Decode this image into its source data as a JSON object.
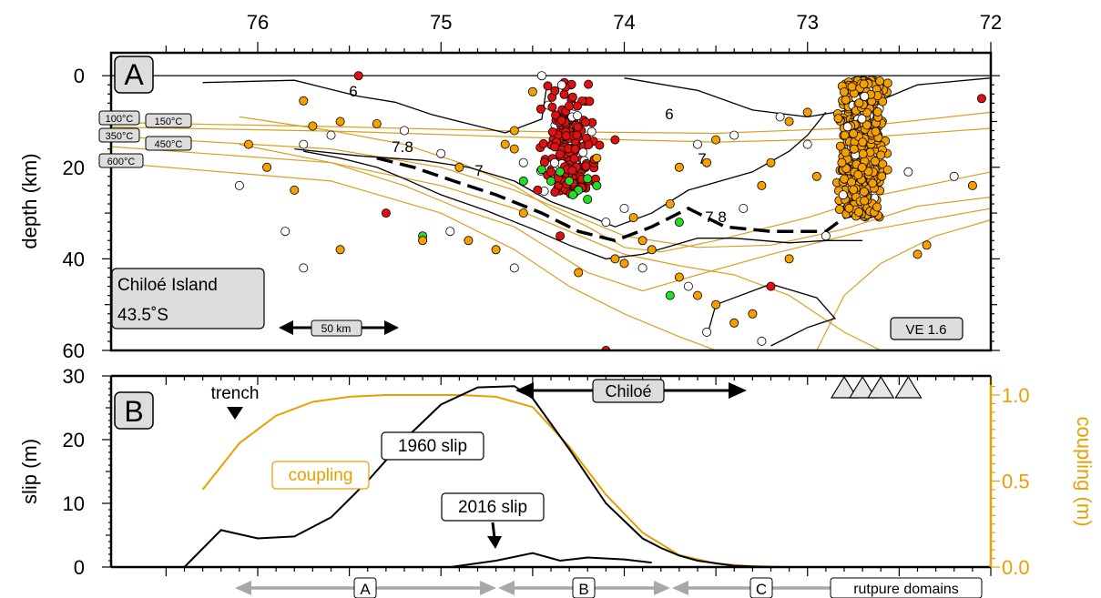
{
  "chart_data": [
    {
      "type": "scatter",
      "panel_label": "A",
      "x_ticks": [
        "76",
        "75",
        "74",
        "73",
        "72"
      ],
      "x_tick_values": [
        76,
        75,
        74,
        73,
        72
      ],
      "xlim": [
        76.8,
        72
      ],
      "ylabel": "depth (km)",
      "y_ticks": [
        "0",
        "20",
        "40",
        "60"
      ],
      "y_tick_values": [
        0,
        20,
        40,
        60
      ],
      "ylim": [
        -5,
        60
      ],
      "location_name": "Chiloé Island",
      "location_lat": "43.5˚S",
      "scale_label": "50 km",
      "ve_label": "VE 1.6",
      "isotherm_labels": [
        "100°C",
        "150°C",
        "350°C",
        "450°C",
        "600°C"
      ],
      "contour_labels": [
        "6",
        "6",
        "7",
        "7",
        "7.8",
        "7.8"
      ],
      "colors": {
        "red": "#dd1111",
        "green": "#22dd22",
        "orange": "#f5a000",
        "white": "#ffffff",
        "isotherm": "#d9a020"
      },
      "slab_top": [
        [
          76.1,
          9
        ],
        [
          75.6,
          12
        ],
        [
          75.2,
          15
        ],
        [
          74.9,
          19
        ],
        [
          74.6,
          24
        ],
        [
          74.4,
          29
        ],
        [
          74.2,
          33
        ],
        [
          74.0,
          37.5
        ],
        [
          73.8,
          38.5
        ],
        [
          73.5,
          36
        ],
        [
          73.0,
          31
        ],
        [
          72.6,
          26
        ],
        [
          72.0,
          21
        ]
      ],
      "slab_bottom": [
        [
          76.1,
          15
        ],
        [
          75.6,
          19
        ],
        [
          75.2,
          24
        ],
        [
          74.9,
          29
        ],
        [
          74.6,
          33
        ],
        [
          74.4,
          38
        ],
        [
          74.2,
          43
        ],
        [
          73.9,
          47
        ],
        [
          73.6,
          43.5
        ],
        [
          73.2,
          39
        ],
        [
          72.7,
          34
        ],
        [
          72.0,
          29
        ]
      ],
      "moho_line": [
        [
          75.35,
          18
        ],
        [
          75.15,
          20
        ],
        [
          74.93,
          23
        ],
        [
          74.7,
          26
        ],
        [
          74.45,
          30
        ],
        [
          74.25,
          34
        ],
        [
          74.05,
          36
        ],
        [
          73.85,
          33
        ],
        [
          73.65,
          29
        ],
        [
          73.45,
          33
        ],
        [
          73.2,
          34
        ],
        [
          72.9,
          34
        ],
        [
          72.8,
          31
        ],
        [
          72.6,
          29
        ]
      ],
      "contour_6": [
        [
          76.3,
          1.5
        ],
        [
          75.8,
          1.0
        ],
        [
          75.6,
          3.0
        ],
        [
          75.45,
          4.5
        ],
        [
          75.25,
          5.8
        ],
        [
          75.05,
          8.5
        ],
        [
          74.85,
          10.5
        ],
        [
          74.65,
          12.5
        ],
        [
          74.45,
          9.5
        ],
        [
          74.42,
          1.5
        ]
      ],
      "contour_6b": [
        [
          74.0,
          0.5
        ],
        [
          73.6,
          3.2
        ],
        [
          73.3,
          7.5
        ],
        [
          73.0,
          9
        ],
        [
          72.7,
          7
        ],
        [
          72.4,
          2
        ],
        [
          72.0,
          0.5
        ]
      ],
      "contour_7": [
        [
          75.8,
          16
        ],
        [
          75.45,
          17.5
        ],
        [
          75.1,
          18.5
        ],
        [
          74.85,
          20
        ],
        [
          74.6,
          23
        ],
        [
          74.4,
          27.5
        ],
        [
          74.2,
          30.5
        ],
        [
          74.05,
          33
        ],
        [
          73.85,
          30
        ],
        [
          73.65,
          25
        ],
        [
          73.3,
          21
        ],
        [
          73.1,
          16.5
        ],
        [
          73.0,
          13
        ],
        [
          72.9,
          8
        ]
      ],
      "contour_78": [
        [
          75.75,
          16.5
        ],
        [
          75.55,
          18
        ],
        [
          75.35,
          20
        ],
        [
          75.2,
          22.5
        ],
        [
          75.0,
          26
        ],
        [
          74.75,
          29.5
        ],
        [
          74.5,
          33.5
        ],
        [
          74.3,
          37
        ],
        [
          74.1,
          40
        ],
        [
          73.9,
          39
        ],
        [
          73.6,
          35.5
        ],
        [
          73.4,
          35.5
        ],
        [
          73.1,
          36.5
        ],
        [
          72.9,
          36
        ],
        [
          72.7,
          36
        ]
      ],
      "isotherm_100": [
        [
          76.8,
          10.2
        ],
        [
          75.5,
          11.2
        ],
        [
          74.5,
          12.2
        ],
        [
          73.5,
          12.6
        ],
        [
          72.8,
          11.5
        ],
        [
          72.0,
          8
        ]
      ],
      "isotherm_150": [
        [
          76.8,
          11.2
        ],
        [
          75.5,
          12.2
        ],
        [
          74.5,
          13.5
        ],
        [
          73.5,
          14.5
        ],
        [
          72.8,
          13.8
        ],
        [
          72.0,
          11.5
        ]
      ],
      "isotherm_350": [
        [
          76.8,
          13.2
        ],
        [
          75.6,
          16
        ],
        [
          75.0,
          20
        ],
        [
          74.6,
          25
        ],
        [
          74.3,
          30
        ],
        [
          74.0,
          35
        ],
        [
          73.6,
          37.5
        ],
        [
          73.2,
          37
        ],
        [
          72.8,
          33.5
        ],
        [
          72.4,
          28.5
        ],
        [
          72.0,
          26.5
        ]
      ],
      "isotherm_450": [
        [
          76.8,
          15.5
        ],
        [
          75.6,
          19
        ],
        [
          75.0,
          24
        ],
        [
          74.6,
          29
        ],
        [
          74.3,
          34
        ],
        [
          74.0,
          39
        ],
        [
          73.7,
          41.5
        ],
        [
          73.4,
          43.5
        ],
        [
          73.1,
          48
        ],
        [
          72.8,
          56
        ],
        [
          72.6,
          60
        ]
      ],
      "isotherm_600": [
        [
          76.8,
          19
        ],
        [
          75.6,
          23
        ],
        [
          75.0,
          30
        ],
        [
          74.6,
          38
        ],
        [
          74.3,
          46
        ],
        [
          74.0,
          52
        ],
        [
          73.7,
          57
        ],
        [
          73.5,
          60
        ]
      ],
      "isotherm_deep": [
        [
          72.0,
          31.5
        ],
        [
          72.3,
          35
        ],
        [
          72.6,
          41
        ],
        [
          72.8,
          48
        ],
        [
          72.95,
          60
        ]
      ]
    },
    {
      "type": "line",
      "panel_label": "B",
      "ylabel": "slip (m)",
      "y2label": "coupling (m)",
      "y_ticks": [
        "0",
        "10",
        "20",
        "30"
      ],
      "y_tick_values": [
        0,
        10,
        20,
        30
      ],
      "y2_ticks": [
        "0.0",
        "0.5",
        "1.0"
      ],
      "y2_tick_values": [
        0,
        0.5,
        1.0
      ],
      "ylim": [
        0,
        30
      ],
      "y2lim": [
        0,
        1.111
      ],
      "annotations": {
        "trench": "trench",
        "chiloe": "Chiloé",
        "slip1960": "1960 slip",
        "slip2016": "2016 slip",
        "coupling": "coupling",
        "rupture_domains": "rutpure domains",
        "domains": [
          "A",
          "B",
          "C"
        ]
      },
      "series": [
        {
          "name": "1960 slip",
          "x": [
            76.4,
            76.2,
            76.0,
            75.8,
            75.6,
            75.4,
            75.2,
            75.0,
            74.8,
            74.6,
            74.5,
            74.3,
            74.1,
            73.9,
            73.8,
            73.7,
            73.6,
            73.4,
            73.2,
            73.0
          ],
          "y": [
            0,
            5.8,
            4.5,
            4.8,
            7.8,
            13.5,
            20,
            25.5,
            28.2,
            28.4,
            26.5,
            18.5,
            10,
            4.5,
            3.0,
            1.8,
            1.0,
            0.2,
            0,
            0
          ]
        },
        {
          "name": "2016 slip",
          "x": [
            74.95,
            74.7,
            74.5,
            74.35,
            74.2,
            74.0,
            73.85
          ],
          "y": [
            0,
            1.0,
            2.2,
            1.0,
            1.5,
            1.2,
            0.7
          ]
        },
        {
          "name": "coupling",
          "x": [
            76.3,
            76.1,
            75.9,
            75.7,
            75.5,
            75.3,
            75.1,
            74.9,
            74.7,
            74.5,
            74.3,
            74.1,
            73.9,
            73.7,
            73.5,
            73.3,
            73.1
          ],
          "y": [
            0.45,
            0.72,
            0.88,
            0.96,
            0.99,
            1.0,
            1.0,
            1.0,
            0.99,
            0.93,
            0.7,
            0.42,
            0.2,
            0.07,
            0.02,
            0.005,
            0.0
          ]
        }
      ],
      "volcanoes_x": [
        72.8,
        72.7,
        72.6,
        72.45
      ]
    }
  ]
}
